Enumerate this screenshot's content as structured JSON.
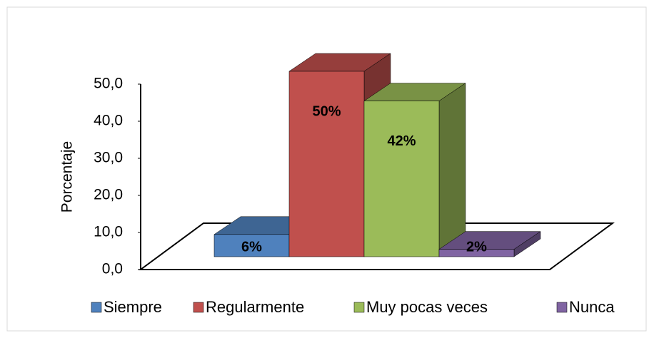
{
  "chart_data": {
    "type": "bar",
    "y_label": "Porcentaje",
    "ylim": [
      0,
      50
    ],
    "yticks": [
      {
        "value": 0,
        "label": "0,0"
      },
      {
        "value": 10,
        "label": "10,0"
      },
      {
        "value": 20,
        "label": "20,0"
      },
      {
        "value": 30,
        "label": "30,0"
      },
      {
        "value": 40,
        "label": "40,0"
      },
      {
        "value": 50,
        "label": "50,0"
      }
    ],
    "series": [
      {
        "name": "Siempre",
        "color": "#4f81bd",
        "values": [
          6
        ],
        "value_labels": [
          "6%"
        ]
      },
      {
        "name": "Regularmente",
        "color": "#c0504d",
        "values": [
          50
        ],
        "value_labels": [
          "50%"
        ]
      },
      {
        "name": "Muy pocas veces",
        "color": "#9bbb59",
        "values": [
          42
        ],
        "value_labels": [
          "42%"
        ]
      },
      {
        "name": "Nunca",
        "color": "#8064a2",
        "values": [
          2
        ],
        "value_labels": [
          "2%"
        ]
      }
    ]
  }
}
